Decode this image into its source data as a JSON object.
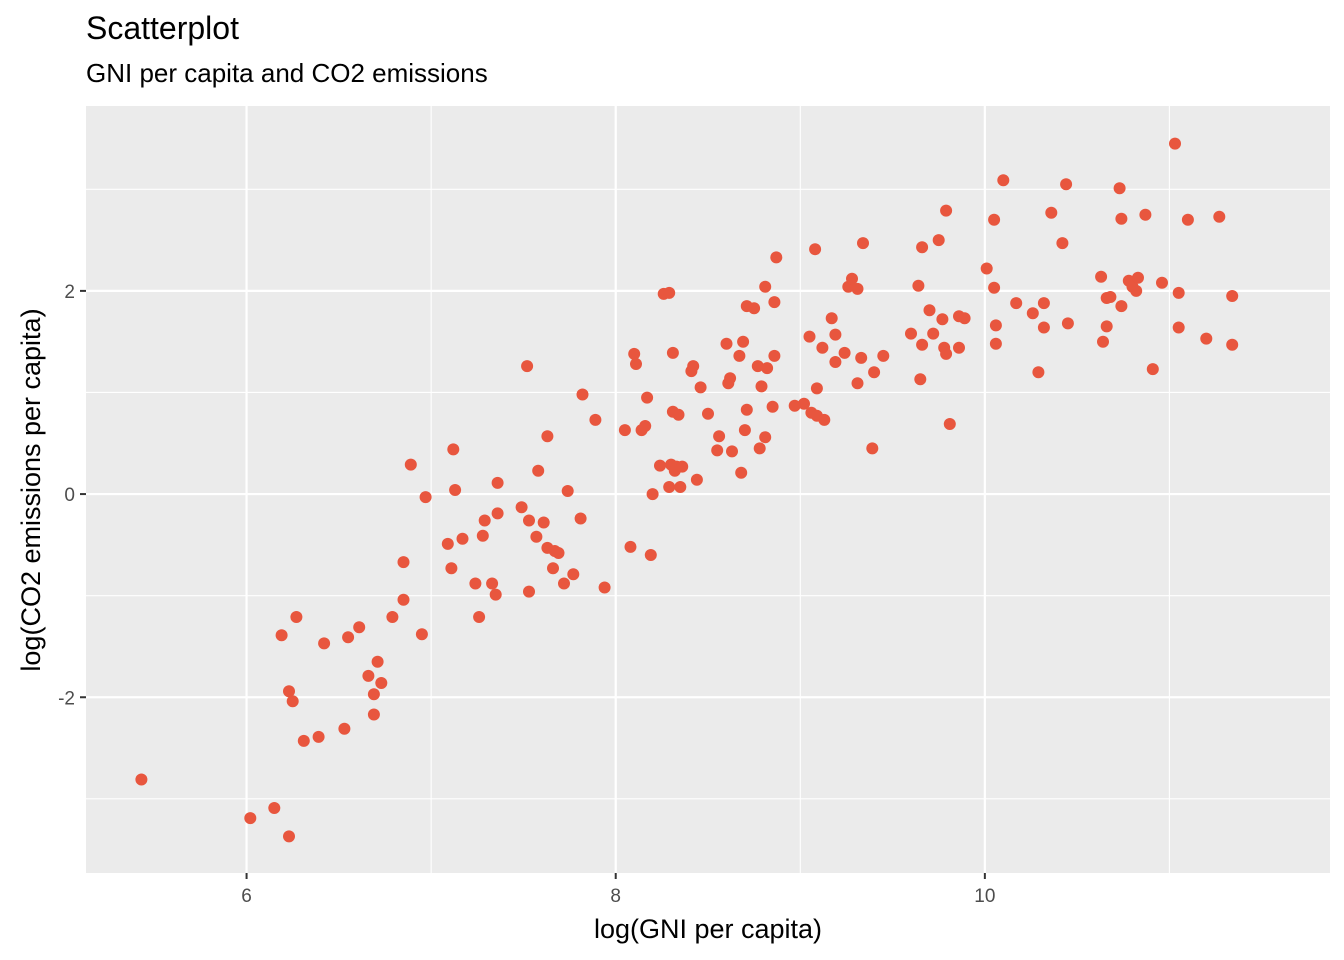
{
  "chart_data": {
    "type": "scatter",
    "title": "Scatterplot",
    "subtitle": "GNI per capita and CO2 emissions",
    "xlabel": "log(GNI per capita)",
    "ylabel": "log(CO2 emissions per capita)",
    "xlim": [
      5.13,
      11.87
    ],
    "ylim": [
      -3.73,
      3.82
    ],
    "xticks": [
      6,
      8,
      10
    ],
    "xtick_labels": [
      "6",
      "8",
      "10"
    ],
    "yticks": [
      -2,
      0,
      2
    ],
    "ytick_labels": [
      "-2",
      "0",
      "2"
    ],
    "grid": true,
    "colors": {
      "point": "#e8563e",
      "panel": "#ebebeb",
      "grid": "#ffffff"
    },
    "points": [
      [
        5.43,
        -2.81
      ],
      [
        6.02,
        -3.19
      ],
      [
        6.15,
        -3.09
      ],
      [
        6.23,
        -3.37
      ],
      [
        6.19,
        -1.39
      ],
      [
        6.27,
        -1.21
      ],
      [
        6.23,
        -1.94
      ],
      [
        6.25,
        -2.04
      ],
      [
        6.31,
        -2.43
      ],
      [
        6.39,
        -2.39
      ],
      [
        6.42,
        -1.47
      ],
      [
        6.53,
        -2.31
      ],
      [
        6.55,
        -1.41
      ],
      [
        6.61,
        -1.31
      ],
      [
        6.66,
        -1.79
      ],
      [
        6.69,
        -1.97
      ],
      [
        6.71,
        -1.65
      ],
      [
        6.73,
        -1.86
      ],
      [
        6.69,
        -2.17
      ],
      [
        6.79,
        -1.21
      ],
      [
        6.85,
        -0.67
      ],
      [
        6.85,
        -1.04
      ],
      [
        6.89,
        0.29
      ],
      [
        6.95,
        -1.38
      ],
      [
        6.97,
        -0.03
      ],
      [
        7.09,
        -0.49
      ],
      [
        7.11,
        -0.73
      ],
      [
        7.12,
        0.44
      ],
      [
        7.13,
        0.04
      ],
      [
        7.17,
        -0.44
      ],
      [
        7.24,
        -0.88
      ],
      [
        7.26,
        -1.21
      ],
      [
        7.28,
        -0.41
      ],
      [
        7.29,
        -0.26
      ],
      [
        7.33,
        -0.88
      ],
      [
        7.35,
        -0.99
      ],
      [
        7.36,
        0.11
      ],
      [
        7.36,
        -0.19
      ],
      [
        7.49,
        -0.13
      ],
      [
        7.52,
        1.26
      ],
      [
        7.53,
        -0.96
      ],
      [
        7.53,
        -0.26
      ],
      [
        7.57,
        -0.42
      ],
      [
        7.58,
        0.23
      ],
      [
        7.61,
        -0.28
      ],
      [
        7.63,
        0.57
      ],
      [
        7.63,
        -0.53
      ],
      [
        7.66,
        -0.73
      ],
      [
        7.67,
        -0.56
      ],
      [
        7.69,
        -0.58
      ],
      [
        7.72,
        -0.88
      ],
      [
        7.74,
        0.03
      ],
      [
        7.77,
        -0.79
      ],
      [
        7.81,
        -0.24
      ],
      [
        7.82,
        0.98
      ],
      [
        7.89,
        0.73
      ],
      [
        7.94,
        -0.92
      ],
      [
        8.05,
        0.63
      ],
      [
        8.08,
        -0.52
      ],
      [
        8.1,
        1.38
      ],
      [
        8.11,
        1.28
      ],
      [
        8.14,
        0.63
      ],
      [
        8.16,
        0.67
      ],
      [
        8.17,
        0.95
      ],
      [
        8.19,
        -0.6
      ],
      [
        8.2,
        0.0
      ],
      [
        8.24,
        0.28
      ],
      [
        8.26,
        1.97
      ],
      [
        8.29,
        1.98
      ],
      [
        8.29,
        0.07
      ],
      [
        8.3,
        0.29
      ],
      [
        8.31,
        1.39
      ],
      [
        8.31,
        0.81
      ],
      [
        8.32,
        0.23
      ],
      [
        8.33,
        0.27
      ],
      [
        8.35,
        0.07
      ],
      [
        8.36,
        0.27
      ],
      [
        8.34,
        0.78
      ],
      [
        8.41,
        1.21
      ],
      [
        8.42,
        1.26
      ],
      [
        8.44,
        0.14
      ],
      [
        8.46,
        1.05
      ],
      [
        8.5,
        0.79
      ],
      [
        8.55,
        0.43
      ],
      [
        8.56,
        0.57
      ],
      [
        8.61,
        1.09
      ],
      [
        8.6,
        1.48
      ],
      [
        8.62,
        1.14
      ],
      [
        8.63,
        0.42
      ],
      [
        8.68,
        0.21
      ],
      [
        8.67,
        1.36
      ],
      [
        8.69,
        1.5
      ],
      [
        8.7,
        0.63
      ],
      [
        8.71,
        1.85
      ],
      [
        8.71,
        0.83
      ],
      [
        8.75,
        1.83
      ],
      [
        8.77,
        1.26
      ],
      [
        8.78,
        0.45
      ],
      [
        8.79,
        1.06
      ],
      [
        8.81,
        2.04
      ],
      [
        8.82,
        1.24
      ],
      [
        8.81,
        0.56
      ],
      [
        8.85,
        0.86
      ],
      [
        8.86,
        1.89
      ],
      [
        8.86,
        1.36
      ],
      [
        8.87,
        2.33
      ],
      [
        8.97,
        0.87
      ],
      [
        9.02,
        0.89
      ],
      [
        9.05,
        1.55
      ],
      [
        9.06,
        0.8
      ],
      [
        9.08,
        2.41
      ],
      [
        9.09,
        0.77
      ],
      [
        9.09,
        1.04
      ],
      [
        9.12,
        1.44
      ],
      [
        9.13,
        0.73
      ],
      [
        9.17,
        1.73
      ],
      [
        9.19,
        1.3
      ],
      [
        9.19,
        1.57
      ],
      [
        9.24,
        1.39
      ],
      [
        9.26,
        2.04
      ],
      [
        9.28,
        2.12
      ],
      [
        9.31,
        1.09
      ],
      [
        9.31,
        2.02
      ],
      [
        9.33,
        1.34
      ],
      [
        9.34,
        2.47
      ],
      [
        9.39,
        0.45
      ],
      [
        9.4,
        1.2
      ],
      [
        9.45,
        1.36
      ],
      [
        9.6,
        1.58
      ],
      [
        9.64,
        2.05
      ],
      [
        9.65,
        1.13
      ],
      [
        9.66,
        1.47
      ],
      [
        9.66,
        2.43
      ],
      [
        9.7,
        1.81
      ],
      [
        9.72,
        1.58
      ],
      [
        9.75,
        2.5
      ],
      [
        9.77,
        1.72
      ],
      [
        9.78,
        1.44
      ],
      [
        9.79,
        2.79
      ],
      [
        9.79,
        1.38
      ],
      [
        9.81,
        0.69
      ],
      [
        9.86,
        1.44
      ],
      [
        9.86,
        1.75
      ],
      [
        9.89,
        1.73
      ],
      [
        10.01,
        2.22
      ],
      [
        10.05,
        2.03
      ],
      [
        10.05,
        2.7
      ],
      [
        10.06,
        1.66
      ],
      [
        10.06,
        1.48
      ],
      [
        10.1,
        3.09
      ],
      [
        10.17,
        1.88
      ],
      [
        10.26,
        1.78
      ],
      [
        10.29,
        1.2
      ],
      [
        10.32,
        1.88
      ],
      [
        10.32,
        1.64
      ],
      [
        10.36,
        2.77
      ],
      [
        10.42,
        2.47
      ],
      [
        10.44,
        3.05
      ],
      [
        10.45,
        1.68
      ],
      [
        10.63,
        2.14
      ],
      [
        10.64,
        1.5
      ],
      [
        10.66,
        1.93
      ],
      [
        10.66,
        1.65
      ],
      [
        10.68,
        1.94
      ],
      [
        10.73,
        3.01
      ],
      [
        10.74,
        1.85
      ],
      [
        10.74,
        2.71
      ],
      [
        10.78,
        2.1
      ],
      [
        10.8,
        2.04
      ],
      [
        10.82,
        2.0
      ],
      [
        10.83,
        2.13
      ],
      [
        10.87,
        2.75
      ],
      [
        10.91,
        1.23
      ],
      [
        10.96,
        2.08
      ],
      [
        11.03,
        3.45
      ],
      [
        11.05,
        1.98
      ],
      [
        11.05,
        1.64
      ],
      [
        11.1,
        2.7
      ],
      [
        11.2,
        1.53
      ],
      [
        11.27,
        2.73
      ],
      [
        11.34,
        1.95
      ],
      [
        11.34,
        1.47
      ]
    ]
  }
}
